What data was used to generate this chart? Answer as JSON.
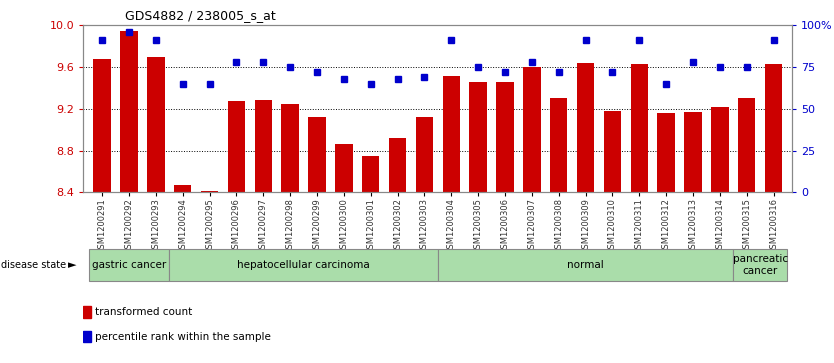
{
  "title": "GDS4882 / 238005_s_at",
  "samples": [
    "GSM1200291",
    "GSM1200292",
    "GSM1200293",
    "GSM1200294",
    "GSM1200295",
    "GSM1200296",
    "GSM1200297",
    "GSM1200298",
    "GSM1200299",
    "GSM1200300",
    "GSM1200301",
    "GSM1200302",
    "GSM1200303",
    "GSM1200304",
    "GSM1200305",
    "GSM1200306",
    "GSM1200307",
    "GSM1200308",
    "GSM1200309",
    "GSM1200310",
    "GSM1200311",
    "GSM1200312",
    "GSM1200313",
    "GSM1200314",
    "GSM1200315",
    "GSM1200316"
  ],
  "transformed_count": [
    9.68,
    9.95,
    9.7,
    8.47,
    8.41,
    9.28,
    9.29,
    9.25,
    9.12,
    8.86,
    8.75,
    8.92,
    9.12,
    9.52,
    9.46,
    9.46,
    9.6,
    9.3,
    9.64,
    9.18,
    9.63,
    9.16,
    9.17,
    9.22,
    9.3,
    9.63
  ],
  "percentile_rank": [
    91,
    96,
    91,
    65,
    65,
    78,
    78,
    75,
    72,
    68,
    65,
    68,
    69,
    91,
    75,
    72,
    78,
    72,
    91,
    72,
    91,
    65,
    78,
    75,
    75,
    91
  ],
  "ylim": [
    8.4,
    10.0
  ],
  "yticks": [
    8.4,
    8.8,
    9.2,
    9.6,
    10.0
  ],
  "right_yticks": [
    0,
    25,
    50,
    75,
    100
  ],
  "bar_color": "#cc0000",
  "dot_color": "#0000cc",
  "background_color": "#ffffff",
  "disease_groups": [
    {
      "label": "gastric cancer",
      "start": 0,
      "end": 3
    },
    {
      "label": "hepatocellular carcinoma",
      "start": 3,
      "end": 13
    },
    {
      "label": "normal",
      "start": 13,
      "end": 24
    },
    {
      "label": "pancreatic\ncancer",
      "start": 24,
      "end": 26
    }
  ],
  "right_axis_color": "#0000cc",
  "left_axis_color": "#cc0000",
  "legend_items": [
    {
      "color": "#cc0000",
      "label": "transformed count"
    },
    {
      "color": "#0000cc",
      "label": "percentile rank within the sample"
    }
  ]
}
